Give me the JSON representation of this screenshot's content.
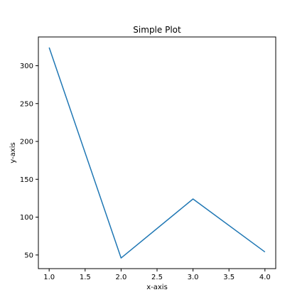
{
  "chart_data": {
    "type": "line",
    "title": "Simple Plot",
    "xlabel": "x-axis",
    "ylabel": "y-axis",
    "xlim": [
      0.85,
      4.15
    ],
    "ylim": [
      32.0,
      338.0
    ],
    "x_ticks": [
      1.0,
      1.5,
      2.0,
      2.5,
      3.0,
      3.5,
      4.0
    ],
    "x_tick_labels": [
      "1.0",
      "1.5",
      "2.0",
      "2.5",
      "3.0",
      "3.5",
      "4.0"
    ],
    "y_ticks": [
      50,
      100,
      150,
      200,
      250,
      300
    ],
    "y_tick_labels": [
      "50",
      "100",
      "150",
      "200",
      "250",
      "300"
    ],
    "grid": false,
    "series": [
      {
        "color": "#1f77b4",
        "x": [
          1.0,
          2.0,
          3.0,
          4.0
        ],
        "y": [
          324,
          46,
          124,
          54
        ]
      }
    ]
  }
}
